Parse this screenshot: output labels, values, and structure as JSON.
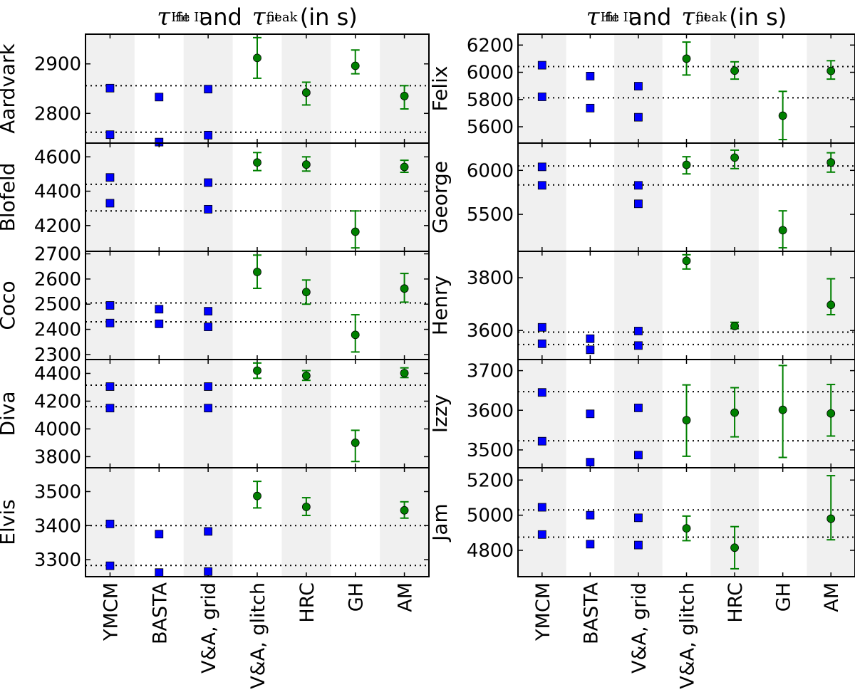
{
  "titles": {
    "tau_symbol": "τ",
    "sub": "fit",
    "sup_he": "He II",
    "sup_peak": "peak",
    "conjunction": "and",
    "unit": "(in s)"
  },
  "chart_data": {
    "type": "scatter",
    "x_categories": [
      "YMCM",
      "BASTA",
      "V&A, grid",
      "V&A, glitch",
      "HRC",
      "GH",
      "AM"
    ],
    "legend": {
      "square_markers": "τ fit He II",
      "circle_markers": "τ fit peak"
    },
    "colors": {
      "square": "#0000ff",
      "circle": "#008000",
      "errorbar": "#008000",
      "band": "#f0f0f0"
    },
    "panels": [
      {
        "name": "Aardvark",
        "column": "left",
        "ylim": [
          2740,
          2960
        ],
        "yticks": [
          2800,
          2900
        ],
        "hlines": [
          2856,
          2762
        ],
        "he_ii": [
          [
            2851,
            2757
          ],
          [
            2833,
            2742
          ],
          [
            2849,
            2756
          ],
          null,
          null,
          null,
          null
        ],
        "peak": [
          null,
          null,
          null,
          [
            2912,
            2953,
            2871
          ],
          [
            2842,
            2863,
            2817
          ],
          [
            2896,
            2928,
            2880
          ],
          [
            2835,
            2856,
            2809
          ]
        ]
      },
      {
        "name": "Blofeld",
        "column": "left",
        "ylim": [
          4050,
          4680
        ],
        "yticks": [
          4200,
          4400,
          4600
        ],
        "hlines": [
          4440,
          4285
        ],
        "he_ii": [
          [
            4480,
            4330
          ],
          null,
          [
            4450,
            4295
          ],
          null,
          null,
          null,
          null
        ],
        "peak": [
          null,
          null,
          null,
          [
            4567,
            4625,
            4520
          ],
          [
            4555,
            4600,
            4517
          ],
          [
            4164,
            4285,
            4070
          ],
          [
            4541,
            4580,
            4510
          ]
        ]
      },
      {
        "name": "Coco",
        "column": "left",
        "ylim": [
          2280,
          2710
        ],
        "yticks": [
          2300,
          2400,
          2500,
          2600,
          2700
        ],
        "hlines": [
          2505,
          2430
        ],
        "he_ii": [
          [
            2495,
            2425
          ],
          [
            2480,
            2422
          ],
          [
            2472,
            2410
          ],
          null,
          null,
          null,
          null
        ],
        "peak": [
          null,
          null,
          null,
          [
            2628,
            2695,
            2563
          ],
          [
            2548,
            2596,
            2500
          ],
          [
            2378,
            2458,
            2310
          ],
          [
            2562,
            2622,
            2508
          ]
        ]
      },
      {
        "name": "Diva",
        "column": "left",
        "ylim": [
          3720,
          4500
        ],
        "yticks": [
          3800,
          4000,
          4200,
          4400
        ],
        "hlines": [
          4315,
          4160
        ],
        "he_ii": [
          [
            4305,
            4150
          ],
          null,
          [
            4305,
            4150
          ],
          null,
          null,
          null,
          null
        ],
        "peak": [
          null,
          null,
          null,
          [
            4420,
            4475,
            4365
          ],
          [
            4383,
            4420,
            4350
          ],
          [
            3900,
            3990,
            3765
          ],
          [
            4402,
            4440,
            4370
          ]
        ]
      },
      {
        "name": "Elvis",
        "column": "left",
        "ylim": [
          3250,
          3570
        ],
        "yticks": [
          3300,
          3400,
          3500
        ],
        "hlines": [
          3400,
          3283
        ],
        "he_ii": [
          [
            3405,
            3282
          ],
          [
            3375,
            3262
          ],
          [
            3383,
            3265
          ],
          null,
          null,
          null,
          null
        ],
        "peak": [
          null,
          null,
          null,
          [
            3487,
            3530,
            3452
          ],
          [
            3455,
            3482,
            3430
          ],
          null,
          [
            3445,
            3470,
            3422
          ]
        ]
      },
      {
        "name": "Felix",
        "column": "right",
        "ylim": [
          5480,
          6280
        ],
        "yticks": [
          5600,
          5800,
          6000,
          6200
        ],
        "hlines": [
          6042,
          5813
        ],
        "he_ii": [
          [
            6052,
            5820
          ],
          [
            5972,
            5737
          ],
          [
            5898,
            5670
          ],
          null,
          null,
          null,
          null
        ],
        "peak": [
          null,
          null,
          null,
          [
            6100,
            6222,
            5980
          ],
          [
            6012,
            6077,
            5950
          ],
          [
            5681,
            5860,
            5506
          ],
          [
            6010,
            6085,
            5950
          ]
        ]
      },
      {
        "name": "George",
        "column": "right",
        "ylim": [
          5080,
          6310
        ],
        "yticks": [
          5500,
          6000
        ],
        "hlines": [
          6050,
          5835
        ],
        "he_ii": [
          [
            6040,
            5830
          ],
          null,
          [
            5830,
            5620
          ],
          null,
          null,
          null,
          null
        ],
        "peak": [
          null,
          null,
          null,
          [
            6063,
            6155,
            5960
          ],
          [
            6145,
            6230,
            6020
          ],
          [
            5320,
            5540,
            5120
          ],
          [
            6090,
            6200,
            5980
          ]
        ]
      },
      {
        "name": "Henry",
        "column": "right",
        "ylim": [
          3490,
          3900
        ],
        "yticks": [
          3600,
          3800
        ],
        "hlines": [
          3594,
          3547
        ],
        "he_ii": [
          [
            3612,
            3550
          ],
          [
            3569,
            3527
          ],
          [
            3598,
            3543
          ],
          null,
          null,
          null,
          null
        ],
        "peak": [
          null,
          null,
          null,
          [
            3864,
            3887,
            3833
          ],
          [
            3617,
            3631,
            3607
          ],
          null,
          [
            3697,
            3796,
            3660
          ]
        ]
      },
      {
        "name": "Izzy",
        "column": "right",
        "ylim": [
          3455,
          3728
        ],
        "yticks": [
          3500,
          3600,
          3700
        ],
        "hlines": [
          3647,
          3523
        ],
        "he_ii": [
          [
            3645,
            3522
          ],
          [
            3591,
            3469
          ],
          [
            3606,
            3487
          ],
          null,
          null,
          null,
          null
        ],
        "peak": [
          null,
          null,
          null,
          [
            3575,
            3664,
            3484
          ],
          [
            3594,
            3657,
            3533
          ],
          [
            3601,
            3713,
            3481
          ],
          [
            3592,
            3665,
            3535
          ]
        ]
      },
      {
        "name": "Jam",
        "column": "right",
        "ylim": [
          4650,
          5270
        ],
        "yticks": [
          4800,
          5000,
          5200
        ],
        "hlines": [
          5030,
          4875
        ],
        "he_ii": [
          [
            5045,
            4890
          ],
          [
            5000,
            4835
          ],
          [
            4985,
            4830
          ],
          null,
          null,
          null,
          null
        ],
        "peak": [
          null,
          null,
          null,
          [
            4925,
            4995,
            4855
          ],
          [
            4815,
            4935,
            4695
          ],
          null,
          [
            4980,
            5225,
            4860
          ]
        ]
      }
    ]
  }
}
